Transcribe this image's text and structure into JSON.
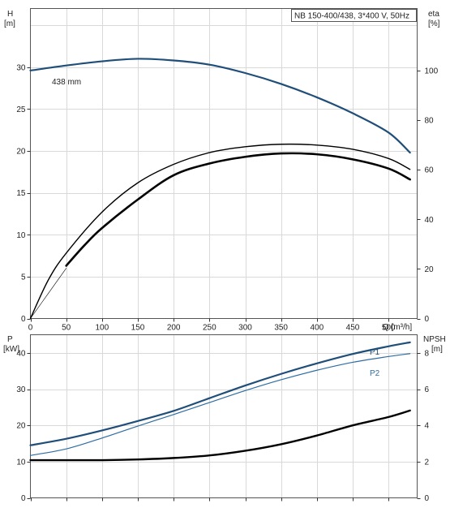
{
  "chart_data": [
    {
      "type": "line",
      "title": "NB 150-400/438, 3*400 V, 50Hz",
      "xlabel": "Q [m³/h]",
      "x_ticks": [
        "0",
        "50",
        "100",
        "150",
        "200",
        "250",
        "300",
        "350",
        "400",
        "450",
        "500"
      ],
      "xlim": [
        0,
        540
      ],
      "left_axis": {
        "title": "H",
        "unit": "[m]",
        "ylim": [
          0,
          37
        ],
        "ticks": [
          "0",
          "5",
          "10",
          "15",
          "20",
          "25",
          "30"
        ]
      },
      "right_axis": {
        "title": "eta",
        "unit": "[%]",
        "ylim": [
          0,
          125
        ],
        "ticks": [
          "0",
          "20",
          "40",
          "60",
          "80",
          "100"
        ]
      },
      "grid": true,
      "series": [
        {
          "name": "438 mm",
          "axis": "left",
          "color": "#1f4e79",
          "points": [
            [
              0,
              29.6
            ],
            [
              50,
              30.2
            ],
            [
              100,
              30.7
            ],
            [
              150,
              31.0
            ],
            [
              200,
              30.8
            ],
            [
              250,
              30.3
            ],
            [
              300,
              29.3
            ],
            [
              350,
              28.0
            ],
            [
              400,
              26.4
            ],
            [
              450,
              24.5
            ],
            [
              500,
              22.2
            ],
            [
              530,
              19.8
            ]
          ]
        },
        {
          "name": "",
          "axis": "left",
          "color": "#000000",
          "points": [
            [
              50,
              6.3
            ],
            [
              75,
              8.7
            ],
            [
              100,
              10.8
            ],
            [
              150,
              14.2
            ],
            [
              200,
              17.1
            ],
            [
              250,
              18.5
            ],
            [
              300,
              19.3
            ],
            [
              350,
              19.7
            ],
            [
              400,
              19.6
            ],
            [
              450,
              19.0
            ],
            [
              500,
              17.9
            ],
            [
              530,
              16.6
            ]
          ]
        },
        {
          "name": "",
          "axis": "left",
          "color": "#000000",
          "points": [
            [
              0,
              0
            ],
            [
              25,
              4.6
            ],
            [
              50,
              7.8
            ],
            [
              100,
              12.7
            ],
            [
              150,
              16.2
            ],
            [
              200,
              18.4
            ],
            [
              250,
              19.8
            ],
            [
              300,
              20.5
            ],
            [
              350,
              20.8
            ],
            [
              400,
              20.7
            ],
            [
              450,
              20.2
            ],
            [
              500,
              19.1
            ],
            [
              530,
              17.8
            ]
          ]
        },
        {
          "name": "",
          "axis": "left",
          "color": "#000000",
          "points": [
            [
              0,
              0
            ],
            [
              25,
              3.0
            ],
            [
              50,
              6.0
            ]
          ]
        }
      ]
    },
    {
      "type": "line",
      "title": "",
      "xlabel": "",
      "xlim": [
        0,
        540
      ],
      "left_axis": {
        "title": "P",
        "unit": "[kW]",
        "ylim": [
          0,
          45
        ],
        "ticks": [
          "0",
          "10",
          "20",
          "30",
          "40"
        ]
      },
      "right_axis": {
        "title": "NPSH",
        "unit": "[m]",
        "ylim": [
          0,
          9
        ],
        "ticks": [
          "0",
          "2",
          "4",
          "6",
          "8"
        ]
      },
      "grid": true,
      "series": [
        {
          "name": "P1",
          "axis": "left",
          "color": "#1f4e79",
          "points": [
            [
              0,
              14.5
            ],
            [
              50,
              16.3
            ],
            [
              100,
              18.6
            ],
            [
              150,
              21.2
            ],
            [
              200,
              24.0
            ],
            [
              250,
              27.5
            ],
            [
              300,
              31.0
            ],
            [
              350,
              34.2
            ],
            [
              400,
              37.1
            ],
            [
              450,
              39.7
            ],
            [
              500,
              41.8
            ],
            [
              530,
              42.9
            ]
          ]
        },
        {
          "name": "P2",
          "axis": "left",
          "color": "#2e6da4",
          "points": [
            [
              0,
              11.7
            ],
            [
              50,
              13.5
            ],
            [
              100,
              16.5
            ],
            [
              150,
              19.8
            ],
            [
              200,
              23.0
            ],
            [
              250,
              26.3
            ],
            [
              300,
              29.6
            ],
            [
              350,
              32.6
            ],
            [
              400,
              35.2
            ],
            [
              450,
              37.4
            ],
            [
              500,
              39.0
            ],
            [
              530,
              39.8
            ]
          ]
        },
        {
          "name": "",
          "axis": "right",
          "color": "#000000",
          "points": [
            [
              0,
              2.08
            ],
            [
              50,
              2.08
            ],
            [
              100,
              2.08
            ],
            [
              150,
              2.12
            ],
            [
              200,
              2.2
            ],
            [
              250,
              2.34
            ],
            [
              300,
              2.6
            ],
            [
              350,
              2.96
            ],
            [
              400,
              3.44
            ],
            [
              450,
              4.0
            ],
            [
              500,
              4.46
            ],
            [
              530,
              4.82
            ]
          ]
        }
      ]
    }
  ]
}
